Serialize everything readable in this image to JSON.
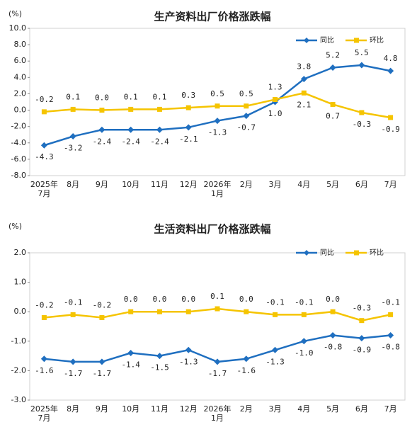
{
  "chart_data": [
    {
      "type": "line",
      "title": "生产资料出厂价格涨跌幅",
      "y_unit": "(%)",
      "categories": [
        "2025年\n7月",
        "8月",
        "9月",
        "10月",
        "11月",
        "12月",
        "2026年\n1月",
        "2月",
        "3月",
        "4月",
        "5月",
        "6月",
        "7月"
      ],
      "series": [
        {
          "name": "同比",
          "color": "#1f6fc0",
          "marker": "diamond",
          "values": [
            -4.3,
            -3.2,
            -2.4,
            -2.4,
            -2.4,
            -2.1,
            -1.3,
            -0.7,
            1.0,
            3.8,
            5.2,
            5.5,
            4.8
          ],
          "value_labels": [
            "-4.3",
            "-3.2",
            "-2.4",
            "-2.4",
            "-2.4",
            "-2.1",
            "-1.3",
            "-0.7",
            "1.0",
            "3.8",
            "5.2",
            "5.5",
            "4.8"
          ]
        },
        {
          "name": "环比",
          "color": "#f5c400",
          "marker": "square",
          "values": [
            -0.2,
            0.1,
            0.0,
            0.1,
            0.1,
            0.3,
            0.5,
            0.5,
            1.3,
            2.1,
            0.7,
            -0.3,
            -0.9
          ],
          "value_labels": [
            "-0.2",
            "0.1",
            "0.0",
            "0.1",
            "0.1",
            "0.3",
            "0.5",
            "0.5",
            "1.3",
            "2.1",
            "0.7",
            "-0.3",
            "-0.9"
          ]
        }
      ],
      "ylim": [
        -8,
        10
      ],
      "yticks": [
        {
          "value": -8,
          "label": "-8.0"
        },
        {
          "value": -6,
          "label": "-6.0"
        },
        {
          "value": -4,
          "label": "-4.0"
        },
        {
          "value": -2,
          "label": "-2.0"
        },
        {
          "value": 0,
          "label": "0.0"
        },
        {
          "value": 2,
          "label": "2.0"
        },
        {
          "value": 4,
          "label": "4.0"
        },
        {
          "value": 6,
          "label": "6.0"
        },
        {
          "value": 8,
          "label": "8.0"
        },
        {
          "value": 10,
          "label": "10.0"
        }
      ],
      "grid": false,
      "legend": "top-right"
    },
    {
      "type": "line",
      "title": "生活资料出厂价格涨跌幅",
      "y_unit": "(%)",
      "categories": [
        "2025年\n7月",
        "8月",
        "9月",
        "10月",
        "11月",
        "12月",
        "2026年\n1月",
        "2月",
        "3月",
        "4月",
        "5月",
        "6月",
        "7月"
      ],
      "series": [
        {
          "name": "同比",
          "color": "#1f6fc0",
          "marker": "diamond",
          "values": [
            -1.6,
            -1.7,
            -1.7,
            -1.4,
            -1.5,
            -1.3,
            -1.7,
            -1.6,
            -1.3,
            -1.0,
            -0.8,
            -0.9,
            -0.8
          ],
          "value_labels": [
            "-1.6",
            "-1.7",
            "-1.7",
            "-1.4",
            "-1.5",
            "-1.3",
            "-1.7",
            "-1.6",
            "-1.3",
            "-1.0",
            "-0.8",
            "-0.9",
            "-0.8"
          ]
        },
        {
          "name": "环比",
          "color": "#f5c400",
          "marker": "square",
          "values": [
            -0.2,
            -0.1,
            -0.2,
            0.0,
            0.0,
            0.0,
            0.1,
            0.0,
            -0.1,
            -0.1,
            0.0,
            -0.3,
            -0.1
          ],
          "value_labels": [
            "-0.2",
            "-0.1",
            "-0.2",
            "0.0",
            "0.0",
            "0.0",
            "0.1",
            "0.0",
            "-0.1",
            "-0.1",
            "0.0",
            "-0.3",
            "-0.1"
          ]
        }
      ],
      "ylim": [
        -3,
        2
      ],
      "yticks": [
        {
          "value": -3,
          "label": "-3.0"
        },
        {
          "value": -2,
          "label": "-2.0"
        },
        {
          "value": -1,
          "label": "-1.0"
        },
        {
          "value": 0,
          "label": "0.0"
        },
        {
          "value": 1,
          "label": "1.0"
        },
        {
          "value": 2,
          "label": "2.0"
        }
      ],
      "grid": false,
      "legend": "top-right"
    }
  ]
}
